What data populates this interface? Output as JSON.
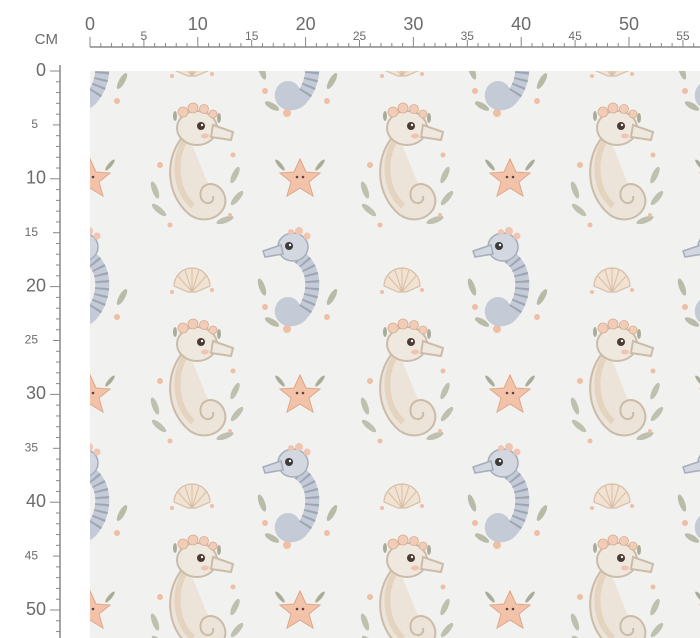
{
  "ruler": {
    "unit": "CM",
    "x_labels": [
      0,
      5,
      10,
      15,
      20,
      25,
      30,
      35,
      40,
      45,
      50,
      55
    ],
    "y_labels": [
      0,
      5,
      10,
      15,
      20,
      25,
      30,
      35,
      40,
      45,
      50
    ]
  }
}
